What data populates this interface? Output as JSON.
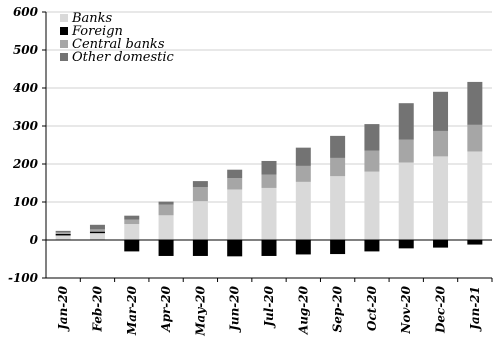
{
  "chart_data": {
    "type": "bar",
    "stacked": true,
    "categories": [
      "Jan-20",
      "Feb-20",
      "Mar-20",
      "Apr-20",
      "May-20",
      "Jun-20",
      "Jul-20",
      "Aug-20",
      "Sep-20",
      "Oct-20",
      "Nov-20",
      "Dec-20",
      "Jan-21"
    ],
    "series": [
      {
        "name": "Banks",
        "color": "#d9d9d9",
        "values": [
          12,
          18,
          42,
          65,
          102,
          133,
          137,
          153,
          168,
          180,
          204,
          220,
          233
        ]
      },
      {
        "name": "Foreign",
        "color": "#000000",
        "values": [
          4,
          4,
          -30,
          -42,
          -42,
          -43,
          -42,
          -38,
          -37,
          -30,
          -22,
          -20,
          -12
        ]
      },
      {
        "name": "Central banks",
        "color": "#a6a6a6",
        "values": [
          4,
          6,
          12,
          28,
          37,
          30,
          35,
          42,
          48,
          55,
          60,
          67,
          70
        ]
      },
      {
        "name": "Other domestic",
        "color": "#737373",
        "values": [
          4,
          12,
          10,
          8,
          16,
          22,
          36,
          48,
          58,
          70,
          96,
          103,
          113
        ]
      }
    ],
    "ylim": [
      -100,
      600
    ],
    "yticks": [
      -100,
      0,
      100,
      200,
      300,
      400,
      500,
      600
    ],
    "grid": true,
    "legend_position": "top-left",
    "title": "",
    "xlabel": "",
    "ylabel": ""
  }
}
